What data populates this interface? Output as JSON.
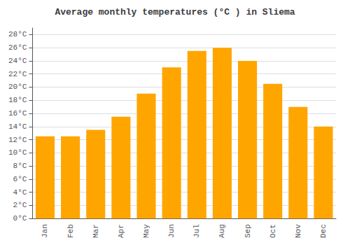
{
  "chart_data": {
    "type": "bar",
    "title": "Average monthly temperatures (°C ) in Sliema",
    "categories": [
      "Jan",
      "Feb",
      "Mar",
      "Apr",
      "May",
      "Jun",
      "Jul",
      "Aug",
      "Sep",
      "Oct",
      "Nov",
      "Dec"
    ],
    "values": [
      12.5,
      12.5,
      13.5,
      15.5,
      19.0,
      23.0,
      25.5,
      26.0,
      24.0,
      20.5,
      17.0,
      14.0
    ],
    "color": "#FFA500",
    "ylim": [
      0,
      29
    ],
    "yticks": [
      {
        "value": 0,
        "label": "0°C"
      },
      {
        "value": 2,
        "label": "2°C"
      },
      {
        "value": 4,
        "label": "4°C"
      },
      {
        "value": 6,
        "label": "6°C"
      },
      {
        "value": 8,
        "label": "8°C"
      },
      {
        "value": 10,
        "label": "10°C"
      },
      {
        "value": 12,
        "label": "12°C"
      },
      {
        "value": 14,
        "label": "14°C"
      },
      {
        "value": 16,
        "label": "16°C"
      },
      {
        "value": 18,
        "label": "18°C"
      },
      {
        "value": 20,
        "label": "20°C"
      },
      {
        "value": 22,
        "label": "22°C"
      },
      {
        "value": 24,
        "label": "24°C"
      },
      {
        "value": 26,
        "label": "26°C"
      },
      {
        "value": 28,
        "label": "28°C"
      }
    ],
    "grid": true
  }
}
